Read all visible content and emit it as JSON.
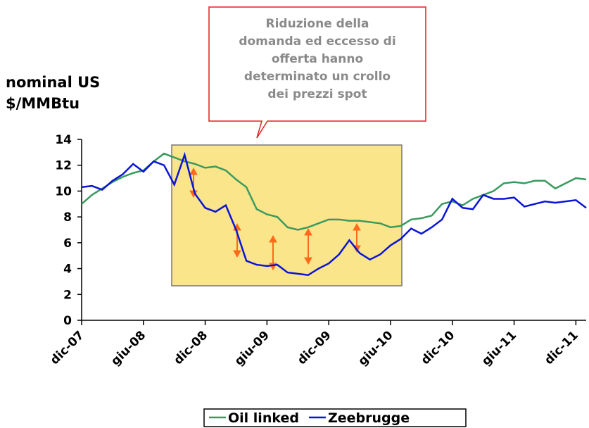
{
  "chart_data": {
    "type": "line",
    "y_label": [
      "nominal US",
      "$/MMBtu"
    ],
    "annotation": [
      "Riduzione della",
      "domanda ed eccesso di",
      "offerta hanno",
      "determinato un crollo",
      "dei prezzi spot"
    ],
    "x": [
      0,
      1,
      2,
      3,
      4,
      5,
      6,
      7,
      8,
      9,
      10,
      11,
      12,
      13,
      14,
      15,
      16,
      17,
      18,
      19,
      20,
      21,
      22,
      23,
      24,
      25,
      26,
      27,
      28,
      29,
      30,
      31,
      32,
      33,
      34,
      35,
      36,
      37,
      38,
      39,
      40,
      41,
      42,
      43,
      44,
      45,
      46,
      47,
      48,
      49
    ],
    "series": [
      {
        "name": "Oil linked",
        "color": "#3a9a5e",
        "values": [
          9.0,
          9.7,
          10.2,
          10.7,
          11.1,
          11.4,
          11.6,
          12.3,
          12.9,
          12.6,
          12.3,
          12.1,
          11.8,
          11.9,
          11.6,
          10.9,
          10.3,
          8.6,
          8.2,
          8.0,
          7.2,
          7.0,
          7.2,
          7.5,
          7.8,
          7.8,
          7.7,
          7.7,
          7.6,
          7.5,
          7.2,
          7.3,
          7.8,
          7.9,
          8.1,
          9.0,
          9.2,
          8.9,
          9.4,
          9.7,
          10.0,
          10.6,
          10.7,
          10.6,
          10.8,
          10.8,
          10.2,
          10.6,
          11.0,
          10.9
        ]
      },
      {
        "name": "Zeebrugge",
        "color": "#0a14d8",
        "values": [
          10.3,
          10.4,
          10.1,
          10.8,
          11.3,
          12.1,
          11.5,
          12.3,
          12.0,
          10.5,
          12.8,
          9.8,
          8.7,
          8.4,
          8.9,
          7.0,
          4.6,
          4.3,
          4.2,
          4.3,
          3.7,
          3.6,
          3.5,
          4.0,
          4.4,
          5.1,
          6.2,
          5.2,
          4.7,
          5.1,
          5.8,
          6.3,
          7.1,
          6.7,
          7.2,
          7.8,
          9.4,
          8.7,
          8.6,
          9.7,
          9.4,
          9.4,
          9.5,
          8.8,
          9.0,
          9.2,
          9.1,
          9.2,
          9.3,
          8.7
        ]
      }
    ],
    "xlim": [
      0,
      49
    ],
    "xticks": [
      {
        "value": 0,
        "label": "dic-07"
      },
      {
        "value": 6,
        "label": "giu-08"
      },
      {
        "value": 12,
        "label": "dic-08"
      },
      {
        "value": 18,
        "label": "giu-09"
      },
      {
        "value": 24,
        "label": "dic-09"
      },
      {
        "value": 30,
        "label": "giu-10"
      },
      {
        "value": 36,
        "label": "dic-10"
      },
      {
        "value": 42,
        "label": "giu-11"
      },
      {
        "value": 48,
        "label": "dic-11"
      }
    ],
    "ylim": [
      0,
      14
    ],
    "yticks": [
      0,
      2,
      4,
      6,
      8,
      10,
      12,
      14
    ],
    "legend": "bottom"
  }
}
